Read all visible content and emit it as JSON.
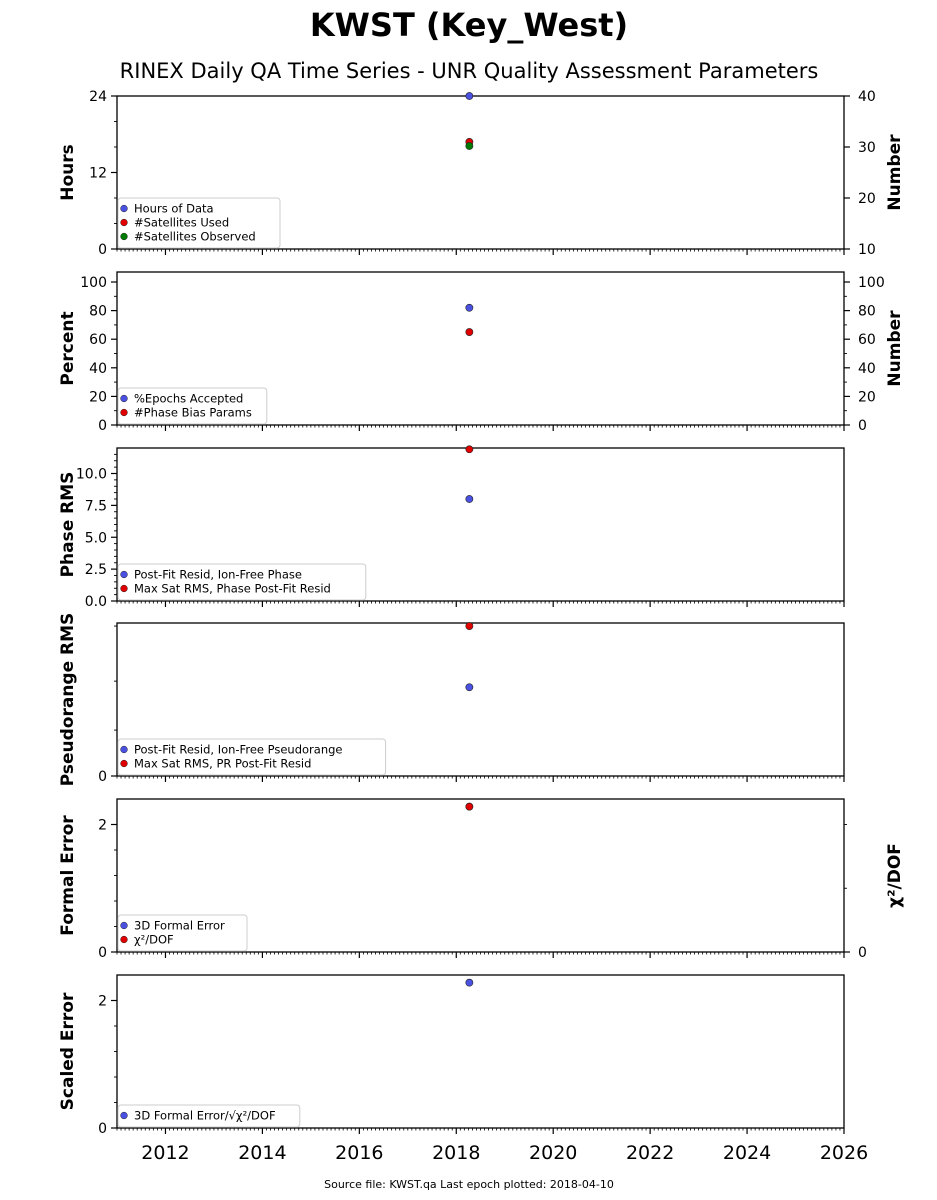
{
  "figure": {
    "title": "KWST (Key_West)",
    "subtitle": "RINEX Daily QA Time Series - UNR Quality Assessment Parameters",
    "footer": "Source file: KWST.qa Last epoch plotted: 2018-04-10"
  },
  "colors": {
    "blue": "#4a50e0",
    "red": "#e00000",
    "green": "#007a00"
  },
  "chart_data": [
    {
      "type": "scatter",
      "ylabel": "Hours",
      "ylim": [
        0,
        24
      ],
      "yticks": [
        0,
        12,
        24
      ],
      "yticklabels": [
        "0",
        "12",
        "24"
      ],
      "yminor": [
        4,
        8,
        16,
        20
      ],
      "y2label": "Number",
      "y2lim": [
        10,
        40
      ],
      "y2ticks": [
        10,
        20,
        30,
        40
      ],
      "y2ticklabels": [
        "10",
        "20",
        "30",
        "40"
      ],
      "legend_loc": "lower-left",
      "series": [
        {
          "name": "Hours of Data",
          "color": "blue",
          "axis": "left",
          "points": [
            [
              2018.27,
              24
            ]
          ]
        },
        {
          "name": "#Satellites Used",
          "color": "red",
          "axis": "right",
          "points": [
            [
              2018.27,
              31
            ]
          ]
        },
        {
          "name": "#Satellites Observed",
          "color": "green",
          "axis": "right",
          "points": [
            [
              2018.27,
              30.2
            ]
          ]
        }
      ]
    },
    {
      "type": "scatter",
      "ylabel": "Percent",
      "ylim": [
        0,
        107
      ],
      "yticks": [
        0,
        20,
        40,
        60,
        80,
        100
      ],
      "yticklabels": [
        "0",
        "20",
        "40",
        "60",
        "80",
        "100"
      ],
      "yminor": [
        10,
        30,
        50,
        70,
        90
      ],
      "y2label": "Number",
      "y2lim": [
        0,
        107
      ],
      "y2ticks": [
        0,
        20,
        40,
        60,
        80,
        100
      ],
      "y2ticklabels": [
        "0",
        "20",
        "40",
        "60",
        "80",
        "100"
      ],
      "y2minor": [
        10,
        30,
        50,
        70,
        90
      ],
      "legend_loc": "lower-left",
      "series": [
        {
          "name": "%Epochs Accepted",
          "color": "blue",
          "axis": "left",
          "points": [
            [
              2018.27,
              82
            ]
          ]
        },
        {
          "name": "#Phase Bias Params",
          "color": "red",
          "axis": "right",
          "points": [
            [
              2018.27,
              65
            ]
          ]
        }
      ]
    },
    {
      "type": "scatter",
      "ylabel": "Phase RMS",
      "ylim": [
        0,
        12
      ],
      "yticks": [
        0,
        2.5,
        5,
        7.5,
        10
      ],
      "yticklabels": [
        "0.0",
        "2.5",
        "5.0",
        "7.5",
        "10.0"
      ],
      "yminor": [
        0.5,
        1,
        1.5,
        2,
        3,
        3.5,
        4,
        4.5,
        5.5,
        6,
        6.5,
        7,
        8,
        8.5,
        9,
        9.5,
        10.5,
        11,
        11.5
      ],
      "legend_loc": "lower-left",
      "series": [
        {
          "name": "Post-Fit Resid, Ion-Free Phase",
          "color": "blue",
          "axis": "left",
          "points": [
            [
              2018.27,
              8.0
            ]
          ]
        },
        {
          "name": "Max Sat RMS, Phase Post-Fit Resid",
          "color": "red",
          "axis": "left",
          "points": [
            [
              2018.27,
              11.9
            ]
          ]
        }
      ]
    },
    {
      "type": "scatter",
      "ylabel": "Pseudorange RMS",
      "ylim": [
        0,
        10
      ],
      "yticks": [
        0
      ],
      "yticklabels": [
        "0"
      ],
      "yminor": [
        3,
        6.2,
        9.8
      ],
      "legend_loc": "lower-left",
      "series": [
        {
          "name": "Post-Fit Resid, Ion-Free Pseudorange",
          "color": "blue",
          "axis": "left",
          "points": [
            [
              2018.27,
              5.8
            ]
          ]
        },
        {
          "name": "Max Sat RMS, PR Post-Fit Resid",
          "color": "red",
          "axis": "left",
          "points": [
            [
              2018.27,
              9.8
            ]
          ]
        }
      ]
    },
    {
      "type": "scatter",
      "ylabel": "Formal Error",
      "ylim": [
        0,
        2.4
      ],
      "yticks": [
        0,
        2
      ],
      "yticklabels": [
        "0",
        "2"
      ],
      "yminor": [
        0.4,
        0.8,
        1.2,
        1.6
      ],
      "y2label": "χ²/DOF",
      "y2lim": [
        0,
        2.4
      ],
      "y2ticks": [
        0
      ],
      "y2ticklabels": [
        "0"
      ],
      "y2minor": [
        1,
        2
      ],
      "legend_loc": "lower-left",
      "series": [
        {
          "name": "3D Formal Error",
          "color": "blue",
          "axis": "left",
          "points": [
            [
              2018.27,
              2.28
            ]
          ]
        },
        {
          "name": "χ²/DOF",
          "color": "red",
          "axis": "right",
          "points": [
            [
              2018.27,
              2.28
            ]
          ]
        }
      ]
    },
    {
      "type": "scatter",
      "ylabel": "Scaled Error",
      "ylim": [
        0,
        2.4
      ],
      "yticks": [
        0,
        2
      ],
      "yticklabels": [
        "0",
        "2"
      ],
      "yminor": [
        0.4,
        0.8,
        1.2,
        1.6
      ],
      "legend_loc": "lower-left",
      "series": [
        {
          "name": "3D Formal Error/√χ²/DOF",
          "color": "blue",
          "axis": "left",
          "points": [
            [
              2018.27,
              2.28
            ]
          ]
        }
      ]
    }
  ],
  "xaxis": {
    "xlim": [
      2011,
      2026
    ],
    "ticks": [
      2012,
      2014,
      2016,
      2018,
      2020,
      2022,
      2024,
      2026
    ],
    "ticklabels": [
      "2012",
      "2014",
      "2016",
      "2018",
      "2020",
      "2022",
      "2024",
      "2026"
    ]
  }
}
